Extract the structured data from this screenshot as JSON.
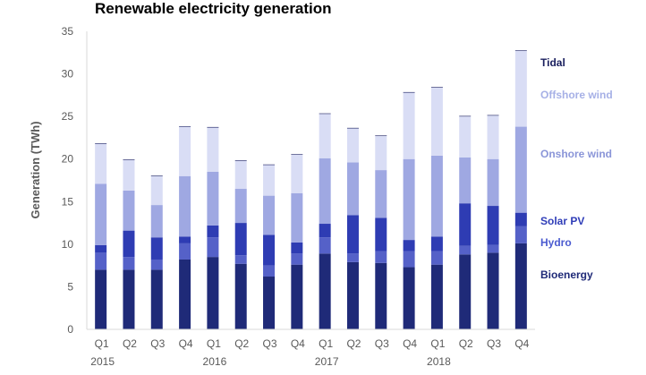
{
  "chart_data": {
    "type": "bar",
    "stacked": true,
    "title": "Renewable electricity generation",
    "ylabel": "Generation (TWh)",
    "xlabel": "",
    "ylim": [
      0,
      35
    ],
    "yticks": [
      0,
      5,
      10,
      15,
      20,
      25,
      30,
      35
    ],
    "grid": false,
    "legend_position": "right, labels beside last bar",
    "categories": [
      "Q1 2015",
      "Q2 2015",
      "Q3 2015",
      "Q4 2015",
      "Q1 2016",
      "Q2 2016",
      "Q3 2016",
      "Q4 2016",
      "Q1 2017",
      "Q2 2017",
      "Q3 2017",
      "Q4 2017",
      "Q1 2018",
      "Q2 2018",
      "Q3 2018",
      "Q4 2018"
    ],
    "quarter_labels": [
      "Q1",
      "Q2",
      "Q3",
      "Q4",
      "Q1",
      "Q2",
      "Q3",
      "Q4",
      "Q1",
      "Q2",
      "Q3",
      "Q4",
      "Q1",
      "Q2",
      "Q3",
      "Q4"
    ],
    "year_labels": [
      "2015",
      "2016",
      "2017",
      "2018"
    ],
    "series": [
      {
        "name": "Bioenergy",
        "color": "#1f2a78",
        "values": [
          7.0,
          7.0,
          7.0,
          8.2,
          8.5,
          7.7,
          6.2,
          7.6,
          8.9,
          7.9,
          7.8,
          7.3,
          7.6,
          8.8,
          9.0,
          10.1
        ]
      },
      {
        "name": "Hydro",
        "color": "#5561c8",
        "values": [
          2.0,
          1.5,
          1.2,
          1.9,
          2.3,
          1.0,
          1.3,
          1.3,
          1.9,
          1.0,
          1.4,
          1.9,
          1.6,
          1.0,
          0.9,
          2.0
        ]
      },
      {
        "name": "Solar PV",
        "color": "#2e3cb3",
        "values": [
          0.9,
          3.1,
          2.6,
          0.8,
          1.4,
          3.8,
          3.6,
          1.3,
          1.6,
          4.5,
          3.9,
          1.3,
          1.7,
          5.0,
          4.6,
          1.6
        ]
      },
      {
        "name": "Onshore wind",
        "color": "#9fa8e2",
        "values": [
          7.2,
          4.7,
          3.8,
          7.1,
          6.3,
          4.0,
          4.6,
          5.8,
          7.7,
          6.2,
          5.6,
          9.5,
          9.5,
          5.4,
          5.5,
          10.1
        ]
      },
      {
        "name": "Offshore wind",
        "color": "#d9ddf5",
        "values": [
          4.7,
          3.6,
          3.4,
          5.8,
          5.2,
          3.3,
          3.6,
          4.5,
          5.2,
          4.0,
          4.0,
          7.8,
          8.0,
          4.8,
          5.1,
          8.9
        ]
      },
      {
        "name": "Tidal",
        "color": "#14195a",
        "values": [
          0.002,
          0.002,
          0.002,
          0.002,
          0.002,
          0.002,
          0.002,
          0.002,
          0.002,
          0.002,
          0.002,
          0.002,
          0.002,
          0.002,
          0.002,
          0.002
        ]
      }
    ],
    "legend": [
      {
        "label": "Tidal",
        "color": "#1a1f5e"
      },
      {
        "label": "Offshore wind",
        "color": "#a6b0e6"
      },
      {
        "label": "Onshore wind",
        "color": "#8a95d8"
      },
      {
        "label": "Solar PV",
        "color": "#2f3db8"
      },
      {
        "label": "Hydro",
        "color": "#4b5bd0"
      },
      {
        "label": "Bioenergy",
        "color": "#1f2a78"
      }
    ]
  }
}
